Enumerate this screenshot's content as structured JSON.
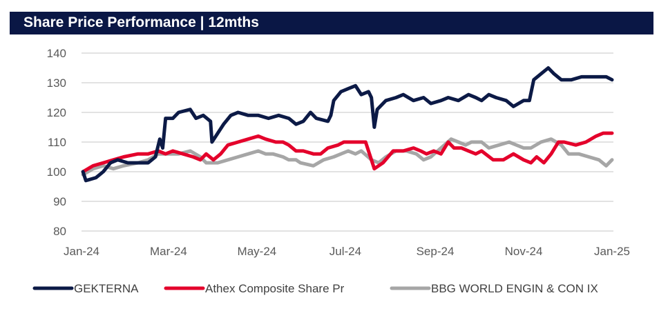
{
  "chart_data": {
    "type": "line",
    "title": "Share Price Performance | 12mths",
    "xlabel": "",
    "ylabel": "",
    "x_unit": "days since Jan-24",
    "xlim": [
      0,
      366
    ],
    "ylim": [
      80,
      140
    ],
    "y_ticks": [
      80,
      90,
      100,
      110,
      120,
      130,
      140
    ],
    "x_ticks": [
      {
        "day": 0,
        "label": "Jan-24"
      },
      {
        "day": 60,
        "label": "Mar-24"
      },
      {
        "day": 121,
        "label": "May-24"
      },
      {
        "day": 182,
        "label": "Jul-24"
      },
      {
        "day": 244,
        "label": "Sep-24"
      },
      {
        "day": 305,
        "label": "Nov-24"
      },
      {
        "day": 366,
        "label": "Jan-25"
      }
    ],
    "grid": true,
    "legend_position": "bottom",
    "series": [
      {
        "name": "GEKTERNA",
        "color": "#0c1a46",
        "points": [
          [
            1,
            100
          ],
          [
            3,
            97
          ],
          [
            10,
            98
          ],
          [
            15,
            100
          ],
          [
            20,
            103
          ],
          [
            25,
            104
          ],
          [
            32,
            103
          ],
          [
            39,
            103
          ],
          [
            46,
            103
          ],
          [
            51,
            105
          ],
          [
            54,
            111
          ],
          [
            56,
            108
          ],
          [
            58,
            118
          ],
          [
            63,
            118
          ],
          [
            67,
            120
          ],
          [
            75,
            121
          ],
          [
            79,
            118
          ],
          [
            84,
            119
          ],
          [
            89,
            117
          ],
          [
            90,
            110
          ],
          [
            94,
            113
          ],
          [
            98,
            116
          ],
          [
            103,
            119
          ],
          [
            108,
            120
          ],
          [
            115,
            119
          ],
          [
            122,
            119
          ],
          [
            129,
            118
          ],
          [
            136,
            119
          ],
          [
            143,
            118
          ],
          [
            148,
            116
          ],
          [
            153,
            117
          ],
          [
            158,
            120
          ],
          [
            162,
            118
          ],
          [
            170,
            117
          ],
          [
            172,
            119
          ],
          [
            174,
            124
          ],
          [
            179,
            127
          ],
          [
            184,
            128
          ],
          [
            189,
            129
          ],
          [
            193,
            126
          ],
          [
            198,
            127
          ],
          [
            200,
            125
          ],
          [
            202,
            115
          ],
          [
            204,
            121
          ],
          [
            210,
            124
          ],
          [
            217,
            125
          ],
          [
            222,
            126
          ],
          [
            229,
            124
          ],
          [
            236,
            125
          ],
          [
            241,
            123
          ],
          [
            248,
            124
          ],
          [
            253,
            125
          ],
          [
            260,
            124
          ],
          [
            267,
            126
          ],
          [
            272,
            125
          ],
          [
            276,
            124
          ],
          [
            281,
            126
          ],
          [
            286,
            125
          ],
          [
            293,
            124
          ],
          [
            298,
            122
          ],
          [
            305,
            124
          ],
          [
            309,
            124
          ],
          [
            312,
            131
          ],
          [
            317,
            133
          ],
          [
            322,
            135
          ],
          [
            326,
            133
          ],
          [
            331,
            131
          ],
          [
            338,
            131
          ],
          [
            345,
            132
          ],
          [
            352,
            132
          ],
          [
            357,
            132
          ],
          [
            362,
            132
          ],
          [
            366,
            131
          ]
        ]
      },
      {
        "name": "Athex Composite Share Pr",
        "color": "#e4002b",
        "points": [
          [
            1,
            100
          ],
          [
            8,
            102
          ],
          [
            15,
            103
          ],
          [
            22,
            104
          ],
          [
            29,
            105
          ],
          [
            39,
            106
          ],
          [
            46,
            106
          ],
          [
            53,
            107
          ],
          [
            58,
            106
          ],
          [
            63,
            107
          ],
          [
            70,
            106
          ],
          [
            77,
            105
          ],
          [
            82,
            104
          ],
          [
            86,
            106
          ],
          [
            91,
            104
          ],
          [
            96,
            106
          ],
          [
            101,
            109
          ],
          [
            108,
            110
          ],
          [
            115,
            111
          ],
          [
            122,
            112
          ],
          [
            127,
            111
          ],
          [
            134,
            110
          ],
          [
            139,
            110
          ],
          [
            143,
            109
          ],
          [
            148,
            107
          ],
          [
            153,
            107
          ],
          [
            160,
            106
          ],
          [
            165,
            106
          ],
          [
            170,
            108
          ],
          [
            177,
            109
          ],
          [
            181,
            110
          ],
          [
            186,
            110
          ],
          [
            191,
            110
          ],
          [
            196,
            110
          ],
          [
            200,
            104
          ],
          [
            202,
            101
          ],
          [
            208,
            103
          ],
          [
            215,
            107
          ],
          [
            222,
            107
          ],
          [
            229,
            108
          ],
          [
            234,
            107
          ],
          [
            238,
            106
          ],
          [
            243,
            107
          ],
          [
            248,
            106
          ],
          [
            253,
            110
          ],
          [
            257,
            108
          ],
          [
            262,
            108
          ],
          [
            267,
            107
          ],
          [
            272,
            106
          ],
          [
            276,
            107
          ],
          [
            284,
            104
          ],
          [
            291,
            104
          ],
          [
            298,
            106
          ],
          [
            305,
            104
          ],
          [
            310,
            103
          ],
          [
            314,
            105
          ],
          [
            319,
            103
          ],
          [
            324,
            106
          ],
          [
            329,
            110
          ],
          [
            333,
            110
          ],
          [
            341,
            109
          ],
          [
            348,
            110
          ],
          [
            355,
            112
          ],
          [
            360,
            113
          ],
          [
            366,
            113
          ]
        ]
      },
      {
        "name": "BBG WORLD ENGIN & CON IX",
        "color": "#a6a6a6",
        "points": [
          [
            1,
            99
          ],
          [
            8,
            101
          ],
          [
            15,
            102
          ],
          [
            22,
            101
          ],
          [
            29,
            102
          ],
          [
            39,
            103
          ],
          [
            46,
            104
          ],
          [
            53,
            106
          ],
          [
            60,
            106
          ],
          [
            67,
            106
          ],
          [
            75,
            107
          ],
          [
            82,
            105
          ],
          [
            86,
            103
          ],
          [
            94,
            103
          ],
          [
            101,
            104
          ],
          [
            108,
            105
          ],
          [
            115,
            106
          ],
          [
            122,
            107
          ],
          [
            127,
            106
          ],
          [
            132,
            106
          ],
          [
            139,
            105
          ],
          [
            143,
            104
          ],
          [
            148,
            104
          ],
          [
            151,
            103
          ],
          [
            160,
            102
          ],
          [
            167,
            104
          ],
          [
            174,
            105
          ],
          [
            179,
            106
          ],
          [
            184,
            107
          ],
          [
            189,
            106
          ],
          [
            193,
            107
          ],
          [
            200,
            104
          ],
          [
            205,
            103
          ],
          [
            210,
            105
          ],
          [
            217,
            107
          ],
          [
            224,
            107
          ],
          [
            231,
            106
          ],
          [
            236,
            104
          ],
          [
            241,
            105
          ],
          [
            248,
            108
          ],
          [
            255,
            111
          ],
          [
            260,
            110
          ],
          [
            265,
            109
          ],
          [
            269,
            110
          ],
          [
            276,
            110
          ],
          [
            281,
            108
          ],
          [
            288,
            109
          ],
          [
            295,
            110
          ],
          [
            300,
            109
          ],
          [
            305,
            108
          ],
          [
            310,
            108
          ],
          [
            317,
            110
          ],
          [
            324,
            111
          ],
          [
            331,
            109
          ],
          [
            336,
            106
          ],
          [
            343,
            106
          ],
          [
            350,
            105
          ],
          [
            357,
            104
          ],
          [
            362,
            102
          ],
          [
            366,
            104
          ]
        ]
      }
    ]
  }
}
